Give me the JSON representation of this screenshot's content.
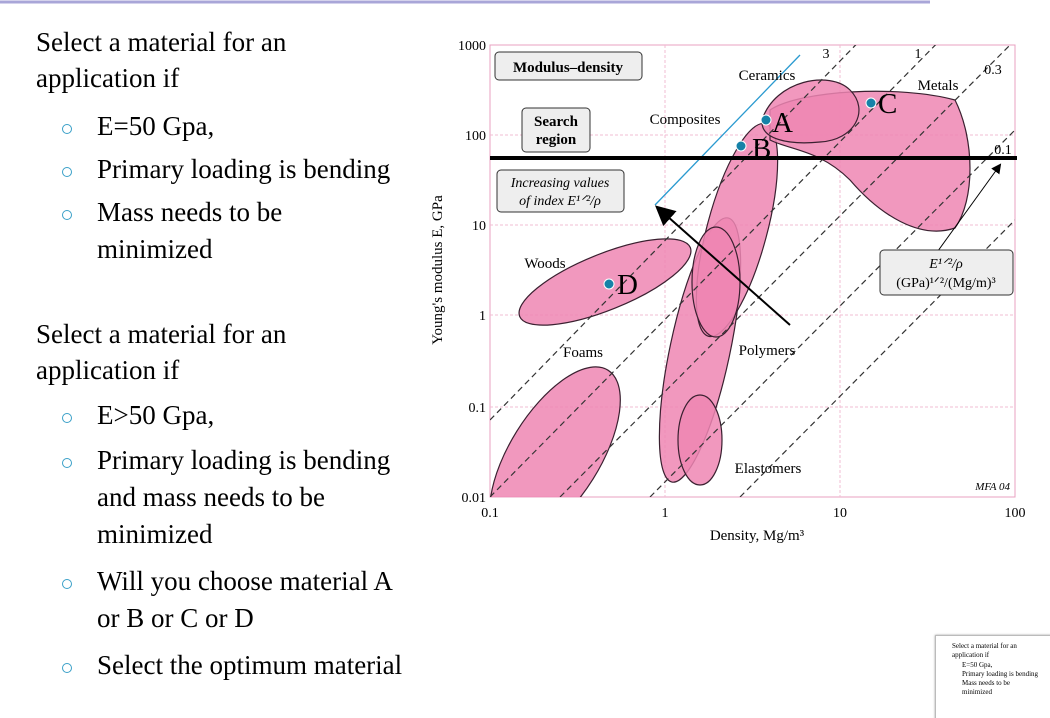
{
  "slide": {
    "bullets": [
      {
        "lines": [
          "Select a material for an",
          "application if"
        ],
        "items": [
          [
            "E=50 Gpa,"
          ],
          [
            "Primary loading is bending"
          ],
          [
            "Mass needs to be",
            "minimized"
          ]
        ]
      },
      {
        "lines": [
          "Select a material for an",
          "application if"
        ],
        "items": [
          [
            "E>50 Gpa,"
          ],
          [
            "Primary loading is bending",
            "and mass needs to be",
            "minimized"
          ],
          [
            "Will you choose material A",
            "or B or C or D"
          ],
          [
            "Select the optimum material"
          ]
        ]
      }
    ],
    "figure": {
      "title": "Modulus–density",
      "y_label": "Young's modulus E, GPa",
      "x_label": "Density, Mg/m³",
      "y_ticks": [
        "1000",
        "100",
        "10",
        "1",
        "0.1",
        "0.01"
      ],
      "x_ticks": [
        "0.1",
        "1",
        "10",
        "100"
      ],
      "search_region": [
        "Search",
        "region"
      ],
      "increasing_note": [
        "Increasing values",
        "of index E¹ᐟ²/ρ"
      ],
      "index_box": [
        "E¹ᐟ²/ρ",
        "(GPa)¹ᐟ²/(Mg/m)³"
      ],
      "regions": [
        "Ceramics",
        "Metals",
        "Composites",
        "Woods",
        "Foams",
        "Polymers",
        "Elastomers"
      ],
      "slopes": [
        "3",
        "1",
        "0.3",
        "0.1"
      ],
      "credit": "MFA 04",
      "points": [
        "A",
        "B",
        "C",
        "D"
      ]
    }
  }
}
